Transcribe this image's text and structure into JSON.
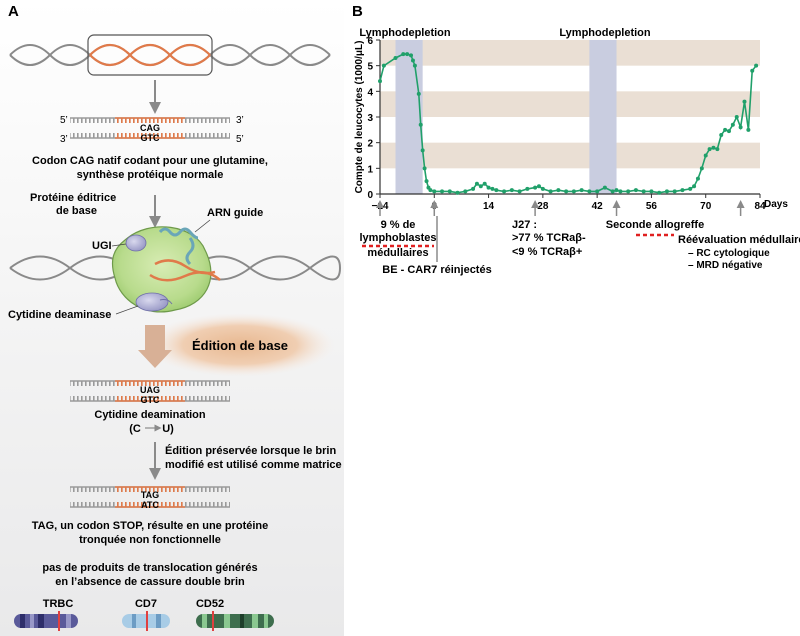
{
  "panel_a": {
    "letter": "A",
    "strand_5_left": "5’",
    "strand_3_right": "3’",
    "strand_3_left": "3’",
    "strand_5_right": "5’",
    "codon_top": "CAG",
    "codon_bottom": "GTC",
    "native_caption_line1": "Codon CAG natif codant pour une glutamine,",
    "native_caption_line2": "synthèse protéique normale",
    "base_editor_label_line1": "Protéine éditrice",
    "base_editor_label_line2": "de base",
    "guide_rna_label": "ARN guide",
    "ugi_label": "UGI",
    "cytidine_deaminase_label": "Cytidine deaminase",
    "base_edition_label": "Édition de base",
    "deaminated_top": "UAG",
    "deaminated_bottom": "GTC",
    "deamination_caption": "Cytidine deamination",
    "deamination_formula_left": "(C",
    "deamination_formula_right": "U)",
    "preserved_line1": "Édition préservée lorsque le brin",
    "preserved_line2": "modifié est utilisé comme matrice",
    "final_top": "TAG",
    "final_bottom": "ATC",
    "stop_line1": "TAG, un codon STOP, résulte en une protéine",
    "stop_line2": "tronquée non fonctionnelle",
    "no_translocation_line1": "pas de produits de translocation générés",
    "no_translocation_line2": "en l’absence de cassure double brin",
    "genes": [
      "TRBC",
      "CD7",
      "CD52"
    ]
  },
  "panel_b": {
    "letter": "B",
    "annotations": {
      "lympho1": "Lymphodepletion",
      "lympho2": "Lymphodepletion",
      "blasts_line1": "9 % de",
      "blasts_line2": "lymphoblastes",
      "blasts_line3": "médullaires",
      "reinjection": "BE - CAR7 réinjectés",
      "j27_line1": "J27 :",
      "j27_line2": ">77 % TCRaβ-",
      "j27_line3": "<9 % TCRaβ+",
      "allograft_line1": "Seconde allogreffe",
      "reeval_line1": "Réévaluation médullaire :",
      "reeval_line2": "–  RC cytologique",
      "reeval_line3": "–  MRD négative"
    },
    "chart_data": {
      "type": "line",
      "title": "",
      "xlabel": "Days",
      "ylabel": "Compte de leucocytes (1000/μL)",
      "xlim": [
        -14,
        84
      ],
      "ylim": [
        0,
        6
      ],
      "xticks": [
        -14,
        0,
        14,
        28,
        42,
        56,
        70,
        84
      ],
      "xtick_labels": [
        "−14",
        "0",
        "14",
        "28",
        "42",
        "56",
        "70",
        "84"
      ],
      "yticks": [
        0,
        1,
        2,
        3,
        4,
        5,
        6
      ],
      "shaded_periods": [
        {
          "label": "Lymphodepletion",
          "x_start": -10,
          "x_end": -3
        },
        {
          "label": "Lymphodepletion",
          "x_start": 40,
          "x_end": 47
        }
      ],
      "series_color": "#20a06a",
      "band_color": "#eadfd4",
      "shade_color": "#c9cde0",
      "x": [
        -14,
        -13,
        -10,
        -8,
        -7,
        -6,
        -5.5,
        -5,
        -4,
        -3.5,
        -3,
        -2.5,
        -2,
        -1.5,
        -1,
        0,
        2,
        4,
        6,
        8,
        10,
        11,
        12,
        13,
        14,
        15,
        16,
        18,
        20,
        22,
        24,
        26,
        27,
        28,
        30,
        32,
        34,
        36,
        38,
        40,
        42,
        44,
        46,
        47,
        48,
        50,
        52,
        54,
        56,
        58,
        60,
        62,
        64,
        66,
        67,
        68,
        69,
        70,
        71,
        72,
        73,
        74,
        75,
        76,
        77,
        78,
        79,
        80,
        81,
        82,
        83
      ],
      "y": [
        4.4,
        5.0,
        5.3,
        5.45,
        5.45,
        5.4,
        5.2,
        5.0,
        3.9,
        2.7,
        1.7,
        1.0,
        0.5,
        0.25,
        0.15,
        0.1,
        0.1,
        0.1,
        0.05,
        0.1,
        0.2,
        0.4,
        0.3,
        0.4,
        0.25,
        0.2,
        0.15,
        0.1,
        0.15,
        0.1,
        0.2,
        0.25,
        0.3,
        0.2,
        0.1,
        0.15,
        0.1,
        0.1,
        0.15,
        0.1,
        0.1,
        0.25,
        0.1,
        0.15,
        0.1,
        0.1,
        0.15,
        0.1,
        0.1,
        0.05,
        0.1,
        0.1,
        0.15,
        0.2,
        0.3,
        0.6,
        1.0,
        1.5,
        1.75,
        1.8,
        1.75,
        2.3,
        2.5,
        2.45,
        2.7,
        3.0,
        2.6,
        3.6,
        2.5,
        4.8,
        5.0
      ]
    }
  }
}
